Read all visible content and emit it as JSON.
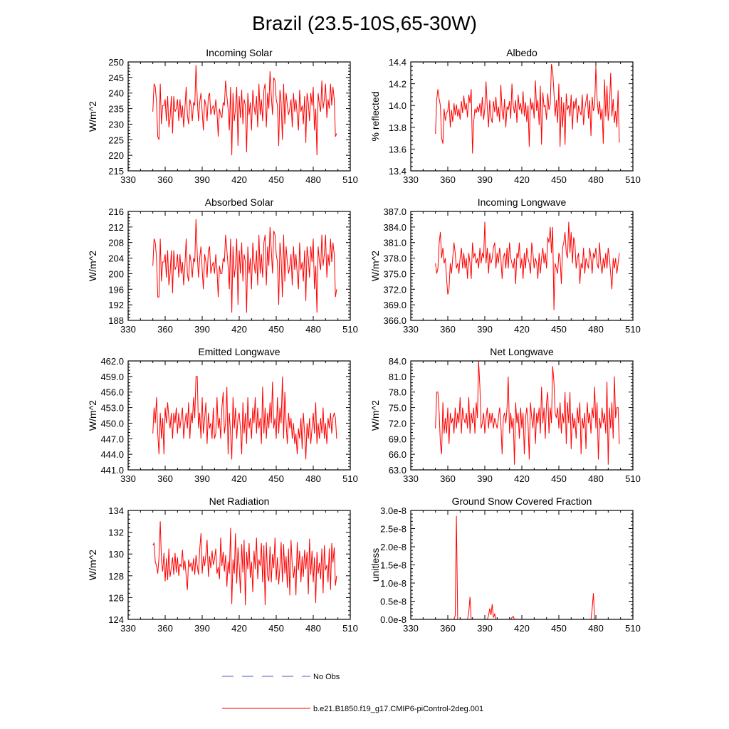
{
  "figure_title": "Brazil (23.5-10S,65-30W)",
  "legend": {
    "obs_label": "No Obs",
    "obs_color": "#4a5fc1",
    "model_label": "b.e21.B1850.f19_g17.CMIP6-piControl-2deg.001",
    "model_color": "#ff0000"
  },
  "chart_data": [
    {
      "type": "line",
      "title": "Incoming Solar",
      "ylabel": "W/m^2",
      "xlim": [
        330,
        510
      ],
      "ylim": [
        215,
        250
      ],
      "xticks": [
        330,
        360,
        390,
        420,
        450,
        480,
        510
      ],
      "yticks": [
        "215",
        "220",
        "225",
        "230",
        "235",
        "240",
        "245",
        "250"
      ],
      "x_start": 350,
      "x_end": 499,
      "values": [
        234,
        243,
        242,
        237,
        226,
        225,
        243,
        230,
        236,
        236,
        238,
        231,
        239,
        229,
        232,
        239,
        227,
        239,
        234,
        235,
        238,
        231,
        238,
        232,
        236,
        229,
        235,
        242,
        233,
        230,
        238,
        236,
        231,
        237,
        236,
        249,
        238,
        231,
        237,
        240,
        234,
        228,
        238,
        236,
        231,
        239,
        240,
        233,
        235,
        236,
        233,
        238,
        234,
        226,
        235,
        233,
        232,
        237,
        236,
        244,
        239,
        235,
        228,
        242,
        220,
        240,
        231,
        235,
        242,
        223,
        239,
        232,
        241,
        230,
        238,
        236,
        221,
        240,
        233,
        237,
        228,
        241,
        236,
        233,
        239,
        229,
        243,
        233,
        238,
        231,
        241,
        243,
        229,
        240,
        235,
        247,
        239,
        233,
        245,
        244,
        238,
        236,
        223,
        241,
        237,
        225,
        243,
        230,
        240,
        236,
        233,
        235,
        238,
        229,
        240,
        234,
        238,
        233,
        228,
        241,
        234,
        236,
        230,
        239,
        224,
        240,
        237,
        231,
        240,
        236,
        242,
        228,
        235,
        220,
        240,
        236,
        234,
        244,
        235,
        238,
        243,
        232,
        238,
        235,
        243,
        236,
        242,
        238,
        226,
        227
      ]
    },
    {
      "type": "line",
      "title": "Albedo",
      "ylabel": "% reflected",
      "xlim": [
        330,
        510
      ],
      "ylim": [
        13.4,
        14.4
      ],
      "xticks": [
        330,
        360,
        390,
        420,
        450,
        480,
        510
      ],
      "yticks": [
        "13.4",
        "13.6",
        "13.8",
        "14.0",
        "14.2",
        "14.4"
      ],
      "x_start": 350,
      "x_end": 499,
      "values": [
        13.74,
        14.05,
        14.15,
        14.06,
        14.0,
        13.7,
        13.65,
        13.97,
        13.86,
        13.93,
        13.95,
        14.05,
        13.8,
        13.96,
        13.85,
        14.02,
        13.91,
        14.01,
        13.9,
        13.97,
        13.87,
        14.04,
        13.93,
        14.09,
        13.96,
        14.02,
        13.89,
        14.1,
        14.02,
        14.15,
        13.56,
        13.85,
        13.97,
        13.93,
        13.99,
        13.94,
        14.02,
        13.9,
        14.08,
        13.87,
        13.97,
        14.22,
        13.98,
        13.8,
        14.05,
        13.89,
        13.84,
        14.04,
        13.94,
        14.08,
        13.9,
        13.99,
        13.85,
        14.19,
        13.95,
        13.87,
        14.06,
        13.8,
        13.99,
        13.96,
        14.04,
        13.88,
        14.2,
        14.0,
        13.93,
        14.05,
        13.84,
        14.1,
        13.96,
        14.02,
        13.92,
        14.13,
        13.9,
        14.03,
        13.85,
        14.0,
        13.62,
        14.07,
        13.96,
        14.03,
        13.88,
        14.23,
        13.95,
        14.05,
        13.82,
        14.18,
        13.64,
        14.12,
        13.99,
        14.0,
        13.87,
        14.11,
        13.96,
        14.01,
        14.38,
        14.32,
        14.12,
        13.9,
        14.05,
        13.84,
        14.2,
        13.62,
        14.08,
        13.8,
        14.03,
        13.64,
        14.11,
        13.96,
        14.0,
        13.9,
        14.1,
        13.78,
        14.04,
        13.97,
        14.07,
        13.84,
        14.0,
        13.95,
        13.91,
        14.1,
        13.82,
        13.96,
        14.04,
        14.11,
        13.88,
        14.05,
        13.72,
        14.08,
        13.95,
        14.0,
        14.36,
        14.06,
        13.92,
        14.04,
        13.87,
        13.97,
        13.65,
        14.24,
        13.9,
        14.18,
        13.86,
        14.0,
        14.3,
        13.9,
        14.06,
        13.84,
        13.95,
        13.8,
        14.14,
        13.66
      ]
    },
    {
      "type": "line",
      "title": "Absorbed Solar",
      "ylabel": "W/m^2",
      "xlim": [
        330,
        510
      ],
      "ylim": [
        188,
        216
      ],
      "xticks": [
        330,
        360,
        390,
        420,
        450,
        480,
        510
      ],
      "yticks": [
        "188",
        "192",
        "196",
        "200",
        "204",
        "208",
        "212",
        "216"
      ],
      "x_start": 350,
      "x_end": 499,
      "values": [
        202,
        209,
        208,
        204,
        194,
        194,
        209,
        198,
        203,
        203,
        205,
        199,
        206,
        197,
        200,
        206,
        195,
        206,
        201,
        202,
        205,
        199,
        205,
        200,
        203,
        197,
        202,
        209,
        200,
        198,
        205,
        203,
        199,
        204,
        203,
        214,
        205,
        199,
        204,
        207,
        201,
        196,
        205,
        203,
        199,
        206,
        207,
        200,
        202,
        203,
        200,
        205,
        201,
        194,
        202,
        200,
        200,
        204,
        203,
        210,
        206,
        202,
        196,
        209,
        190,
        207,
        199,
        202,
        209,
        192,
        206,
        200,
        208,
        198,
        205,
        203,
        190,
        207,
        200,
        204,
        196,
        208,
        203,
        200,
        206,
        197,
        210,
        200,
        205,
        199,
        208,
        210,
        197,
        207,
        202,
        212,
        206,
        200,
        211,
        210,
        205,
        203,
        192,
        208,
        204,
        194,
        210,
        198,
        207,
        203,
        200,
        202,
        205,
        197,
        207,
        201,
        205,
        200,
        196,
        208,
        201,
        203,
        198,
        206,
        193,
        207,
        204,
        199,
        207,
        203,
        209,
        196,
        202,
        190,
        207,
        203,
        201,
        210,
        202,
        205,
        210,
        199,
        205,
        202,
        209,
        203,
        208,
        205,
        194,
        196
      ]
    },
    {
      "type": "line",
      "title": "Incoming Longwave",
      "ylabel": "W/m^2",
      "xlim": [
        330,
        510
      ],
      "ylim": [
        366,
        387
      ],
      "xticks": [
        330,
        360,
        390,
        420,
        450,
        480,
        510
      ],
      "yticks": [
        "366.0",
        "369.0",
        "372.0",
        "375.0",
        "378.0",
        "381.0",
        "384.0",
        "387.0"
      ],
      "x_start": 350,
      "x_end": 499,
      "values": [
        377,
        375,
        376,
        381,
        383,
        378,
        380,
        377,
        378,
        374,
        371,
        372,
        377,
        375,
        378,
        381,
        379,
        376,
        377,
        375,
        378,
        380,
        376,
        379,
        376,
        378,
        374,
        379,
        377,
        374,
        381,
        378,
        379,
        377,
        378,
        376,
        380,
        377,
        379,
        378,
        385,
        377,
        380,
        375,
        379,
        377,
        378,
        380,
        381,
        376,
        379,
        377,
        380,
        378,
        374,
        378,
        379,
        376,
        380,
        376,
        381,
        378,
        377,
        376,
        378,
        373,
        379,
        378,
        381,
        376,
        378,
        374,
        379,
        376,
        380,
        378,
        377,
        375,
        381,
        379,
        376,
        378,
        377,
        374,
        379,
        375,
        378,
        380,
        377,
        379,
        376,
        382,
        381,
        384,
        379,
        384,
        368,
        377,
        376,
        375,
        379,
        378,
        373,
        380,
        381,
        383,
        379,
        378,
        385,
        379,
        383,
        377,
        382,
        381,
        376,
        378,
        379,
        373,
        377,
        376,
        380,
        375,
        378,
        377,
        376,
        380,
        378,
        375,
        379,
        378,
        380,
        377,
        376,
        381,
        377,
        375,
        378,
        376,
        379,
        376,
        380,
        378,
        375,
        372,
        378,
        376,
        378,
        375,
        377,
        379
      ]
    },
    {
      "type": "line",
      "title": "Emitted Longwave",
      "ylabel": "W/m^2",
      "xlim": [
        330,
        510
      ],
      "ylim": [
        441,
        462
      ],
      "xticks": [
        330,
        360,
        390,
        420,
        450,
        480,
        510
      ],
      "yticks": [
        "441.0",
        "444.0",
        "447.0",
        "450.0",
        "453.0",
        "456.0",
        "459.0",
        "462.0"
      ],
      "x_start": 350,
      "x_end": 499,
      "values": [
        448,
        453,
        450,
        455,
        448,
        444,
        452,
        447,
        451,
        444,
        453,
        450,
        454,
        451,
        449,
        452,
        447,
        452,
        450,
        453,
        448,
        452,
        449,
        451,
        453,
        447,
        450,
        452,
        449,
        454,
        447,
        452,
        450,
        455,
        451,
        459,
        459,
        449,
        452,
        447,
        455,
        448,
        451,
        454,
        446,
        452,
        449,
        450,
        447,
        453,
        447,
        448,
        455,
        449,
        451,
        447,
        453,
        456,
        448,
        450,
        457,
        444,
        452,
        448,
        443,
        455,
        449,
        453,
        447,
        451,
        452,
        449,
        444,
        454,
        448,
        452,
        446,
        455,
        449,
        451,
        447,
        453,
        450,
        455,
        448,
        453,
        449,
        451,
        446,
        457,
        448,
        453,
        447,
        452,
        449,
        454,
        450,
        458,
        449,
        451,
        447,
        455,
        448,
        453,
        450,
        459,
        447,
        456,
        450,
        446,
        452,
        449,
        451,
        447,
        450,
        446,
        448,
        444,
        449,
        447,
        451,
        445,
        452,
        448,
        443,
        450,
        447,
        451,
        446,
        449,
        452,
        448,
        454,
        446,
        450,
        447,
        451,
        448,
        453,
        447,
        450,
        446,
        451,
        449,
        452,
        448,
        451,
        452,
        451,
        447
      ]
    },
    {
      "type": "line",
      "title": "Net Longwave",
      "ylabel": "W/m^2",
      "xlim": [
        330,
        510
      ],
      "ylim": [
        63,
        84
      ],
      "xticks": [
        330,
        360,
        390,
        420,
        450,
        480,
        510
      ],
      "yticks": [
        "63.0",
        "66.0",
        "69.0",
        "72.0",
        "75.0",
        "78.0",
        "81.0",
        "84.0"
      ],
      "x_start": 350,
      "x_end": 499,
      "values": [
        71,
        78,
        78,
        74,
        68,
        66,
        76,
        70,
        73,
        70,
        75,
        68,
        74,
        72,
        73,
        70,
        75,
        71,
        74,
        72,
        77,
        70,
        75,
        73,
        72,
        74,
        71,
        77,
        70,
        74,
        72,
        75,
        70,
        76,
        73,
        84,
        79,
        71,
        72,
        74,
        70,
        73,
        75,
        71,
        74,
        72,
        74,
        71,
        73,
        72,
        71,
        73,
        75,
        72,
        66,
        73,
        74,
        72,
        75,
        81,
        70,
        74,
        71,
        73,
        64,
        76,
        72,
        74,
        69,
        75,
        71,
        74,
        66,
        73,
        75,
        72,
        65,
        76,
        73,
        71,
        75,
        68,
        74,
        72,
        75,
        70,
        79,
        72,
        75,
        69,
        76,
        78,
        70,
        75,
        72,
        83,
        80,
        74,
        73,
        75,
        71,
        76,
        70,
        74,
        72,
        78,
        68,
        76,
        72,
        78,
        67,
        74,
        71,
        73,
        69,
        75,
        72,
        76,
        66,
        73,
        71,
        74,
        67,
        76,
        72,
        74,
        70,
        75,
        73,
        79,
        71,
        76,
        65,
        73,
        71,
        75,
        72,
        74,
        70,
        80,
        64,
        75,
        71,
        76,
        69,
        81,
        73,
        75,
        75,
        68
      ]
    },
    {
      "type": "line",
      "title": "Net Radiation",
      "ylabel": "W/m^2",
      "xlim": [
        330,
        510
      ],
      "ylim": [
        124,
        134
      ],
      "xticks": [
        330,
        360,
        390,
        420,
        450,
        480,
        510
      ],
      "yticks": [
        "124",
        "126",
        "128",
        "130",
        "132",
        "134"
      ],
      "x_start": 350,
      "x_end": 499,
      "values": [
        130.8,
        131.0,
        129.3,
        128.9,
        128.2,
        129.7,
        133.0,
        129.4,
        128.4,
        130.1,
        127.5,
        129.6,
        127.6,
        130.5,
        127.9,
        128.8,
        129.7,
        128.1,
        130.1,
        128.3,
        129.7,
        128.0,
        129.1,
        128.8,
        130.4,
        128.5,
        129.4,
        128.0,
        126.7,
        129.5,
        128.8,
        129.2,
        128.4,
        129.6,
        128.1,
        129.9,
        128.9,
        128.1,
        130.4,
        131.9,
        128.2,
        129.8,
        128.9,
        130.0,
        131.3,
        127.9,
        129.8,
        128.7,
        130.3,
        129.0,
        129.5,
        130.5,
        128.2,
        128.8,
        127.7,
        131.5,
        128.9,
        130.2,
        128.4,
        129.9,
        127.0,
        129.3,
        128.2,
        132.4,
        125.4,
        129.5,
        128.2,
        131.9,
        127.3,
        130.6,
        128.9,
        126.4,
        130.9,
        128.3,
        131.3,
        125.3,
        130.2,
        128.6,
        131.0,
        127.8,
        129.3,
        126.5,
        130.3,
        128.6,
        131.5,
        127.7,
        129.5,
        128.9,
        131.0,
        127.4,
        130.8,
        125.3,
        131.1,
        128.0,
        127.5,
        130.7,
        127.4,
        130.0,
        128.7,
        131.5,
        127.6,
        129.7,
        127.2,
        128.8,
        131.1,
        127.4,
        130.9,
        128.2,
        129.8,
        126.9,
        130.5,
        126.2,
        131.3,
        129.0,
        127.8,
        128.9,
        126.2,
        131.1,
        128.5,
        130.3,
        127.4,
        129.8,
        127.9,
        130.4,
        128.6,
        130.2,
        126.3,
        131.4,
        128.1,
        130.3,
        127.4,
        129.7,
        125.5,
        130.2,
        128.2,
        129.2,
        127.7,
        130.5,
        126.4,
        130.8,
        128.5,
        129.0,
        127.4,
        130.5,
        126.7,
        131.0,
        129.2,
        130.6,
        127.1,
        128.0
      ]
    },
    {
      "type": "line",
      "title": "Ground Snow Covered Fraction",
      "ylabel": "unitless",
      "xlim": [
        330,
        510
      ],
      "ylim": [
        0,
        3e-08
      ],
      "xticks": [
        330,
        360,
        390,
        420,
        450,
        480,
        510
      ],
      "yticks": [
        "0.0e-8",
        "0.5e-8",
        "1.0e-8",
        "1.5e-8",
        "2.0e-8",
        "2.5e-8",
        "3.0e-8"
      ],
      "x": [
        350,
        365,
        366,
        367,
        368,
        376,
        377,
        378,
        379,
        392,
        393,
        394,
        395,
        396,
        397,
        398,
        399,
        411,
        412,
        413,
        414,
        476,
        477,
        478,
        479,
        499
      ],
      "values": [
        0,
        0,
        1e-09,
        2.85e-08,
        0,
        0,
        2e-09,
        6.2e-09,
        0,
        0,
        1e-09,
        3e-09,
        1.2e-09,
        4.2e-09,
        5e-10,
        1.5e-09,
        0,
        0,
        5e-10,
        8e-10,
        0,
        0,
        3e-09,
        7.2e-09,
        0,
        0
      ]
    }
  ]
}
